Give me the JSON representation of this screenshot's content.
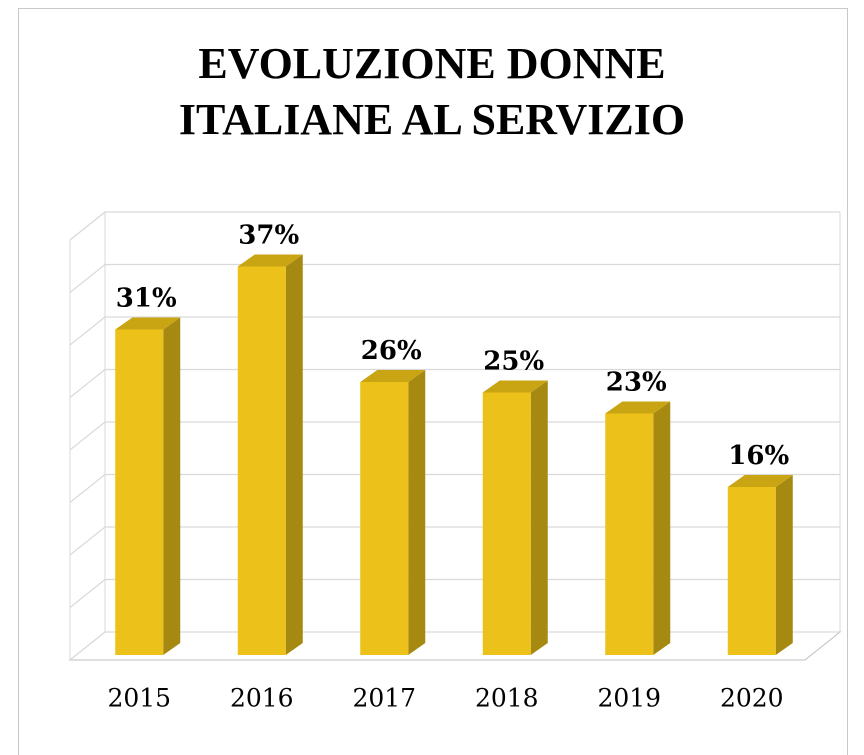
{
  "chart_data": {
    "type": "bar3d",
    "title": "EVOLUZIONE DONNE ITALIANE AL SERVIZIO",
    "categories": [
      "2015",
      "2016",
      "2017",
      "2018",
      "2019",
      "2020"
    ],
    "values": [
      31,
      37,
      26,
      25,
      23,
      16
    ],
    "value_labels": [
      "31%",
      "37%",
      "26%",
      "25%",
      "23%",
      "16%"
    ],
    "color": "#ebc11a",
    "ylim": [
      0,
      40
    ],
    "yticks": [
      0,
      5,
      10,
      15,
      20,
      25,
      30,
      35,
      40
    ],
    "grid": true
  }
}
